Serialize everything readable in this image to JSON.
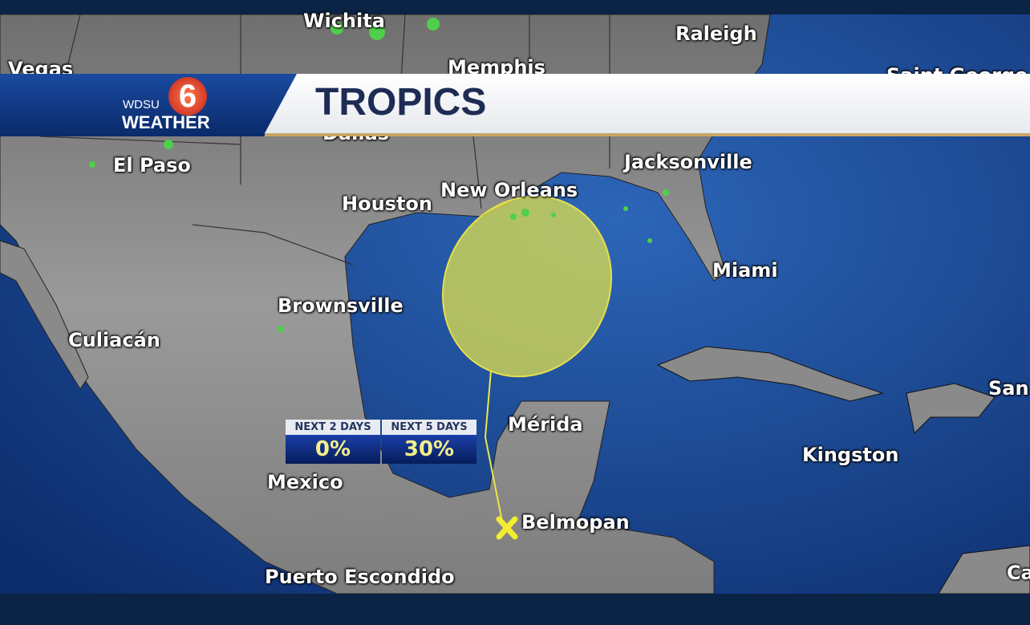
{
  "header": {
    "title": "TROPICS",
    "logo": {
      "station": "WDSU",
      "brand": "WEATHER",
      "channel": "6"
    }
  },
  "outlook": {
    "two_day": {
      "label": "NEXT 2 DAYS",
      "value": "0%"
    },
    "five_day": {
      "label": "NEXT 5 DAYS",
      "value": "30%"
    }
  },
  "cities": [
    "Wichita",
    "Raleigh",
    "Memphis",
    "Vegas",
    "Saint George",
    "Dallas",
    "El Paso",
    "Jacksonville",
    "Houston",
    "New Orleans",
    "Miami",
    "Brownsville",
    "Culiacán",
    "Mérida",
    "Kingston",
    "San",
    "Mexico",
    "Belmopan",
    "Puerto Escondido",
    "Ca"
  ],
  "colors": {
    "ocean": "#1d4f9c",
    "land": "#8c8c8c",
    "cone": "#e8e64a",
    "radar": "#4fd04a"
  },
  "marker": {
    "type": "x-icon",
    "location": "Belmopan"
  }
}
